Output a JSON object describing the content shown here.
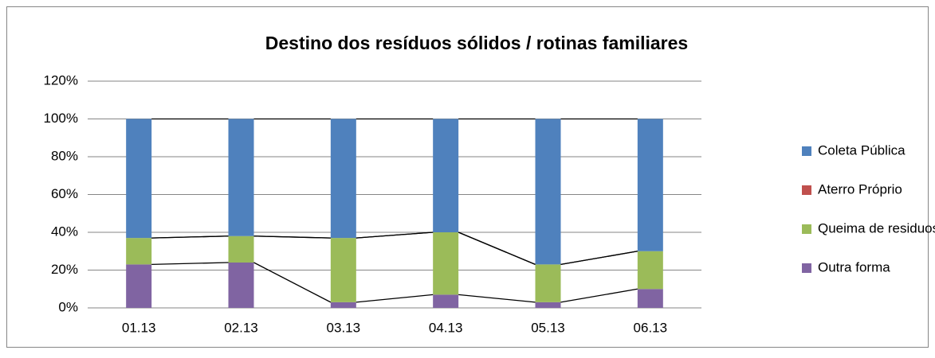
{
  "chart_data": {
    "type": "stacked_bar",
    "title": "Destino dos resíduos sólidos / rotinas familiares",
    "categories": [
      "01.13",
      "02.13",
      "03.13",
      "04.13",
      "05.13",
      "06.13"
    ],
    "series": [
      {
        "name": "Coleta Pública",
        "color": "#4f81bd",
        "values": [
          63,
          62,
          63,
          60,
          77,
          70
        ]
      },
      {
        "name": "Aterro Próprio",
        "color": "#c0504d",
        "values": [
          0,
          0,
          0,
          0,
          0,
          0
        ]
      },
      {
        "name": "Queima de residuos",
        "color": "#9bbb59",
        "values": [
          14,
          14,
          34,
          33,
          20,
          20
        ]
      },
      {
        "name": "Outra forma",
        "color": "#8064a2",
        "values": [
          23,
          24,
          3,
          7,
          3,
          10
        ]
      }
    ],
    "ylim": [
      0,
      120
    ],
    "yticks": [
      {
        "value": 0,
        "label": "0%"
      },
      {
        "value": 20,
        "label": "20%"
      },
      {
        "value": 40,
        "label": "40%"
      },
      {
        "value": 60,
        "label": "60%"
      },
      {
        "value": 80,
        "label": "80%"
      },
      {
        "value": 100,
        "label": "100%"
      },
      {
        "value": 120,
        "label": "120%"
      }
    ],
    "grid": true,
    "legend": "right",
    "series_lines": true
  }
}
